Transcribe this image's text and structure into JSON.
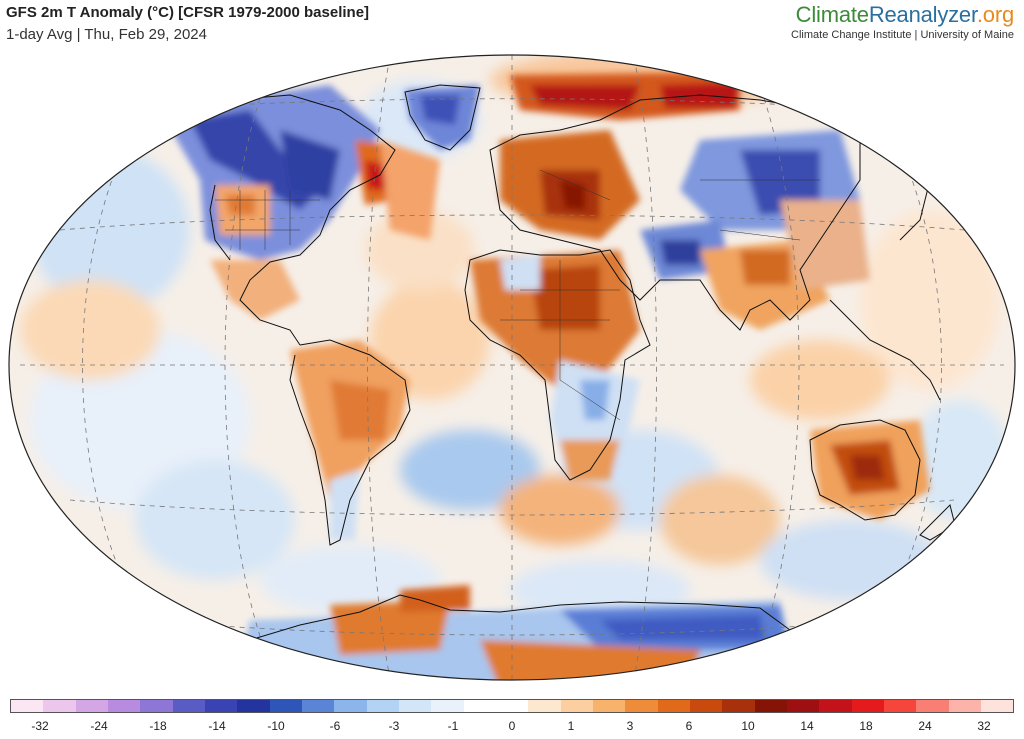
{
  "header": {
    "title": "GFS 2m T Anomaly (°C) [CFSR 1979-2000 baseline]",
    "subtitle": "1-day Avg | Thu, Feb 29, 2024"
  },
  "brand": {
    "name_part1": "Climate",
    "name_part2": "Reanalyzer",
    "name_part3": ".org",
    "tagline": "Climate Change Institute | University of Maine",
    "colors": {
      "climate": "#3d8a3a",
      "reanalyzer": "#2b6f9e",
      "org": "#e88a1d"
    }
  },
  "map": {
    "projection": "Winkel-Tripel-like oval world map",
    "grid": true,
    "anomaly_regions": [
      {
        "region": "Eastern Europe",
        "level": "very warm",
        "color": "#b22a0a"
      },
      {
        "region": "Northern Russia / Arctic",
        "level": "very warm",
        "color": "#c01818"
      },
      {
        "region": "Sahara / North Africa",
        "level": "warm",
        "color": "#d2691e"
      },
      {
        "region": "Australia interior",
        "level": "warm",
        "color": "#c85a14"
      },
      {
        "region": "Central & Western Canada",
        "level": "cold",
        "color": "#3b4db0"
      },
      {
        "region": "Central Asia / Siberia",
        "level": "cold",
        "color": "#4a62c4"
      },
      {
        "region": "Greenland",
        "level": "cold",
        "color": "#5b6fd0"
      },
      {
        "region": "Eastern Canada (Labrador)",
        "level": "very warm",
        "color": "#c21a1a"
      },
      {
        "region": "Antarctica interior",
        "level": "cold",
        "color": "#5f82d6"
      },
      {
        "region": "Antarctic Peninsula / West",
        "level": "warm",
        "color": "#e07a30"
      }
    ]
  },
  "legend": {
    "colors": [
      "#fbe6f3",
      "#ecc6ec",
      "#d5a6e6",
      "#b88be0",
      "#8d76d6",
      "#5a5cc6",
      "#3a43b3",
      "#23349e",
      "#2e55b8",
      "#5a84d6",
      "#8cb5ec",
      "#b3d3f4",
      "#d2e6f8",
      "#e9f2fb",
      "#ffffff",
      "#ffffff",
      "#fde7cf",
      "#fbcf9f",
      "#f7b26c",
      "#ef8c3a",
      "#e06a1a",
      "#c94a0c",
      "#a8300a",
      "#861406",
      "#9e0f12",
      "#c4121b",
      "#e41a1c",
      "#f6463c",
      "#f97f74",
      "#fcb4aa",
      "#fde3dc"
    ],
    "ticks": [
      "-32",
      "-24",
      "-18",
      "-14",
      "-10",
      "-6",
      "-3",
      "-1",
      "0",
      "1",
      "3",
      "6",
      "10",
      "14",
      "18",
      "24",
      "32"
    ]
  }
}
